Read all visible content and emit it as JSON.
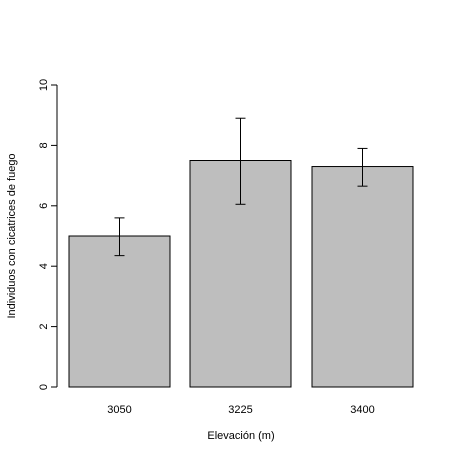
{
  "chart_data": {
    "type": "bar",
    "categories": [
      "3050",
      "3225",
      "3400"
    ],
    "values": [
      5.0,
      7.5,
      7.3
    ],
    "error_bars": {
      "lower": [
        4.35,
        6.05,
        6.65
      ],
      "upper": [
        5.6,
        8.9,
        7.9
      ]
    },
    "xlabel": "Elevación (m)",
    "ylabel": "Individuos con cicatrices de fuego",
    "ylim": [
      0,
      10
    ],
    "yticks": [
      "0",
      "2",
      "4",
      "6",
      "8",
      "10"
    ],
    "grid": false,
    "legend": "none",
    "bar_color": "#bebebe",
    "bar_stroke": "#000000"
  }
}
